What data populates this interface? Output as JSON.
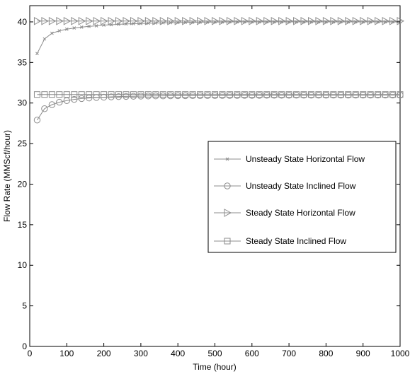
{
  "chart_data": {
    "type": "line",
    "title": "",
    "xlabel": "Time (hour)",
    "ylabel": "Flow Rate (MMScf/hour)",
    "xlim": [
      0,
      1000
    ],
    "ylim": [
      0,
      42
    ],
    "xticks": [
      0,
      100,
      200,
      300,
      400,
      500,
      600,
      700,
      800,
      900,
      1000
    ],
    "yticks": [
      0,
      5,
      10,
      15,
      20,
      25,
      30,
      35,
      40
    ],
    "grid": false,
    "legend_position": "right",
    "line_color": "#8c8c8c",
    "x": [
      20,
      40,
      60,
      80,
      100,
      120,
      140,
      160,
      180,
      200,
      220,
      240,
      260,
      280,
      300,
      320,
      340,
      360,
      380,
      400,
      420,
      440,
      460,
      480,
      500,
      520,
      540,
      560,
      580,
      600,
      620,
      640,
      660,
      680,
      700,
      720,
      740,
      760,
      780,
      800,
      820,
      840,
      860,
      880,
      900,
      920,
      940,
      960,
      980,
      1000
    ],
    "series": [
      {
        "name": "Unsteady State Horizontal Flow",
        "marker": "x",
        "values": [
          36.1,
          37.9,
          38.6,
          38.9,
          39.1,
          39.25,
          39.35,
          39.45,
          39.52,
          39.6,
          39.65,
          39.7,
          39.74,
          39.78,
          39.8,
          39.83,
          39.86,
          39.88,
          39.9,
          39.92,
          39.94,
          39.95,
          39.96,
          39.97,
          39.98,
          39.99,
          40.0,
          40.0,
          40.0,
          40.0,
          40.0,
          40.0,
          40.0,
          40.0,
          40.0,
          40.0,
          40.0,
          40.0,
          40.0,
          40.0,
          40.0,
          40.0,
          40.0,
          40.0,
          40.0,
          40.0,
          40.0,
          40.0,
          40.0,
          40.0
        ]
      },
      {
        "name": "Unsteady State Inclined Flow",
        "marker": "circle",
        "values": [
          27.9,
          29.3,
          29.8,
          30.1,
          30.3,
          30.45,
          30.55,
          30.62,
          30.68,
          30.72,
          30.76,
          30.79,
          30.81,
          30.83,
          30.85,
          30.86,
          30.87,
          30.88,
          30.89,
          30.9,
          30.9,
          30.91,
          30.91,
          30.92,
          30.92,
          30.93,
          30.93,
          30.93,
          30.94,
          30.94,
          30.94,
          30.95,
          30.95,
          30.95,
          30.95,
          30.96,
          30.96,
          30.96,
          30.96,
          30.96,
          30.97,
          30.97,
          30.97,
          30.97,
          30.97,
          30.97,
          30.98,
          30.98,
          30.98,
          30.98
        ]
      },
      {
        "name": "Steady State Horizontal Flow",
        "marker": "triangle-right",
        "values": [
          40.1,
          40.1,
          40.1,
          40.1,
          40.1,
          40.1,
          40.1,
          40.1,
          40.1,
          40.1,
          40.1,
          40.1,
          40.1,
          40.1,
          40.1,
          40.1,
          40.1,
          40.1,
          40.1,
          40.1,
          40.1,
          40.1,
          40.1,
          40.1,
          40.1,
          40.1,
          40.1,
          40.1,
          40.1,
          40.1,
          40.1,
          40.1,
          40.1,
          40.1,
          40.1,
          40.1,
          40.1,
          40.1,
          40.1,
          40.1,
          40.1,
          40.1,
          40.1,
          40.1,
          40.1,
          40.1,
          40.1,
          40.1,
          40.1,
          40.1
        ]
      },
      {
        "name": "Steady State Inclined Flow",
        "marker": "square",
        "values": [
          31.05,
          31.05,
          31.05,
          31.05,
          31.05,
          31.05,
          31.05,
          31.05,
          31.05,
          31.05,
          31.05,
          31.05,
          31.05,
          31.05,
          31.05,
          31.05,
          31.05,
          31.05,
          31.05,
          31.05,
          31.05,
          31.05,
          31.05,
          31.05,
          31.05,
          31.05,
          31.05,
          31.05,
          31.05,
          31.05,
          31.05,
          31.05,
          31.05,
          31.05,
          31.05,
          31.05,
          31.05,
          31.05,
          31.05,
          31.05,
          31.05,
          31.05,
          31.05,
          31.05,
          31.05,
          31.05,
          31.05,
          31.05,
          31.05,
          31.05
        ]
      }
    ]
  }
}
